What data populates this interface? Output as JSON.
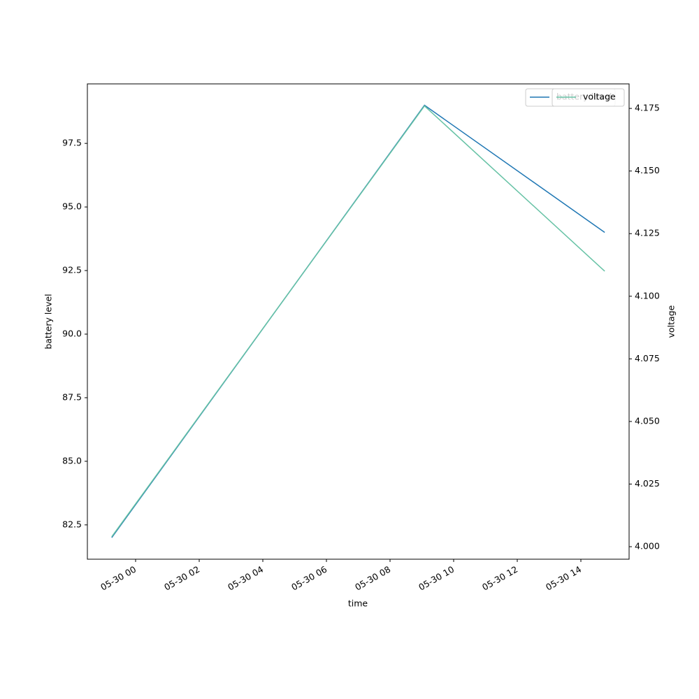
{
  "chart_data": {
    "type": "line",
    "x_label": "time",
    "y_label": "battery level",
    "y2_label": "voltage",
    "x": [
      "05-29 23:15",
      "05-30 09:05",
      "05-30 14:45"
    ],
    "series": [
      {
        "name": "battery level",
        "color": "#1f77b4",
        "values": [
          82,
          99,
          94
        ]
      },
      {
        "name": "voltage",
        "color": "#66c2a5",
        "values": [
          4.004,
          4.176,
          4.11
        ],
        "axis": "y2"
      }
    ],
    "xlim": [
      "05-29 22:29",
      "05-30 15:31"
    ],
    "xticks": [
      "05-30 00",
      "05-30 02",
      "05-30 04",
      "05-30 06",
      "05-30 08",
      "05-30 10",
      "05-30 12",
      "05-30 14"
    ],
    "ylim": [
      81.15,
      99.84
    ],
    "yticks": [
      82.5,
      85.0,
      87.5,
      90.0,
      92.5,
      95.0,
      97.5
    ],
    "y2lim": [
      3.995,
      4.1848
    ],
    "y2ticks": [
      4.0,
      4.025,
      4.05,
      4.075,
      4.1,
      4.125,
      4.15,
      4.175
    ],
    "legend": "upper right"
  }
}
